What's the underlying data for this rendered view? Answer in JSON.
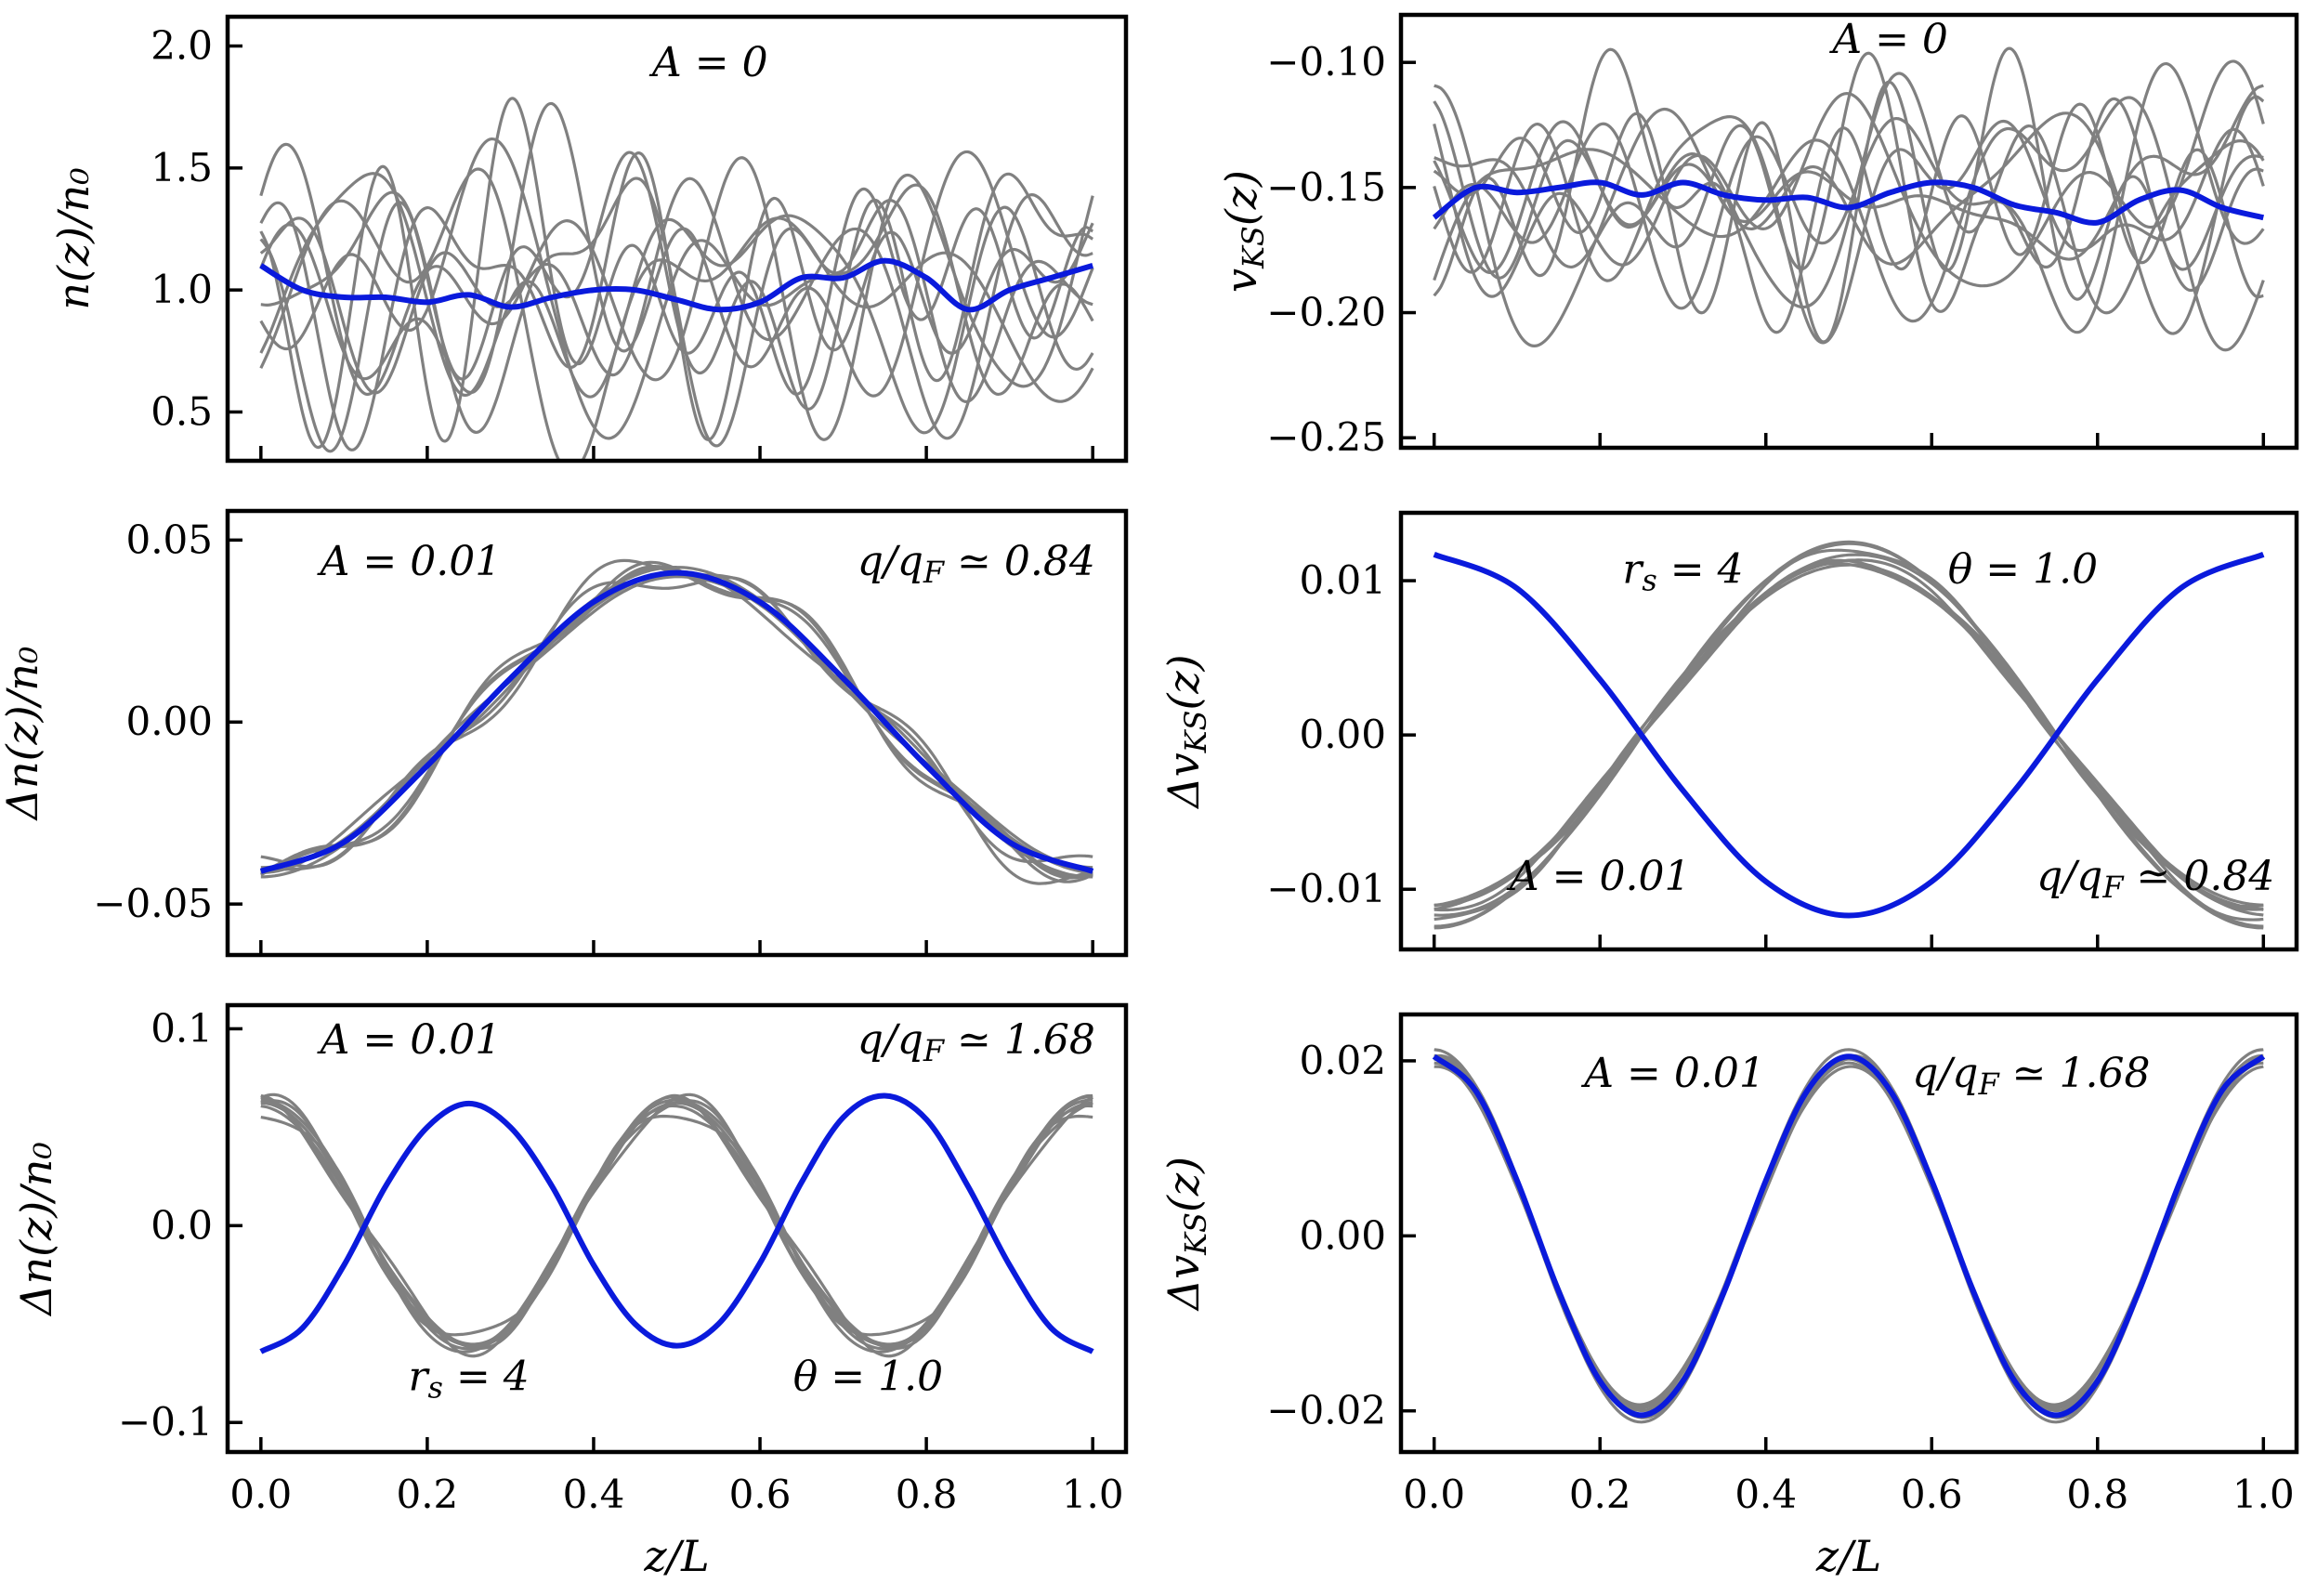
{
  "chart_data": [
    {
      "id": "top-left",
      "type": "line",
      "title": "",
      "xlabel": "",
      "ylabel": "n(z)/n₀",
      "xlim": [
        -0.04,
        1.04
      ],
      "ylim": [
        0.3,
        2.12
      ],
      "xticks": [
        0.0,
        0.2,
        0.4,
        0.6,
        0.8,
        1.0
      ],
      "xtick_labels": [
        "",
        "",
        "",
        "",
        "",
        ""
      ],
      "yticks": [
        0.5,
        1.0,
        1.5,
        2.0
      ],
      "ytick_labels": [
        "0.5",
        "1.0",
        "1.5",
        "2.0"
      ],
      "annotations": [
        {
          "text": "A = 0",
          "x": 0.54,
          "y": 1.93
        }
      ],
      "gray_series_count": 10,
      "gray_curve": {
        "base": 1.0,
        "amp": 0.55,
        "modes": [
          2,
          3,
          4,
          5,
          6,
          7
        ]
      },
      "series": [
        {
          "name": "mean",
          "color": "#0a1adc",
          "x": [
            0.0,
            0.05,
            0.1,
            0.15,
            0.2,
            0.25,
            0.3,
            0.35,
            0.4,
            0.45,
            0.5,
            0.55,
            0.6,
            0.65,
            0.7,
            0.75,
            0.8,
            0.85,
            0.9,
            0.95,
            1.0
          ],
          "y": [
            1.1,
            1.0,
            0.97,
            0.97,
            0.95,
            0.98,
            0.93,
            0.97,
            1.0,
            1.0,
            0.96,
            0.92,
            0.95,
            1.05,
            1.05,
            1.12,
            1.05,
            0.92,
            1.0,
            1.05,
            1.1
          ]
        }
      ]
    },
    {
      "id": "top-right",
      "type": "line",
      "title": "",
      "xlabel": "",
      "ylabel": "v_KS(z)",
      "xlim": [
        -0.04,
        1.04
      ],
      "ylim": [
        -0.254,
        -0.081
      ],
      "xticks": [
        0.0,
        0.2,
        0.4,
        0.6,
        0.8,
        1.0
      ],
      "xtick_labels": [
        "",
        "",
        "",
        "",
        "",
        ""
      ],
      "yticks": [
        -0.25,
        -0.2,
        -0.15,
        -0.1
      ],
      "ytick_labels": [
        "−0.25",
        "−0.20",
        "−0.15",
        "−0.10"
      ],
      "annotations": [
        {
          "text": "A = 0",
          "x": 0.55,
          "y": -0.091
        }
      ],
      "gray_series_count": 10,
      "gray_curve": {
        "base": -0.155,
        "amp": 0.045,
        "modes": [
          2,
          3,
          4,
          5,
          6,
          7
        ]
      },
      "series": [
        {
          "name": "mean",
          "color": "#0a1adc",
          "x": [
            0.0,
            0.05,
            0.1,
            0.15,
            0.2,
            0.25,
            0.3,
            0.35,
            0.4,
            0.45,
            0.5,
            0.55,
            0.6,
            0.65,
            0.7,
            0.75,
            0.8,
            0.85,
            0.9,
            0.95,
            1.0
          ],
          "y": [
            -0.162,
            -0.15,
            -0.152,
            -0.15,
            -0.148,
            -0.153,
            -0.148,
            -0.153,
            -0.155,
            -0.154,
            -0.158,
            -0.152,
            -0.148,
            -0.15,
            -0.157,
            -0.16,
            -0.164,
            -0.155,
            -0.151,
            -0.158,
            -0.162
          ]
        }
      ]
    },
    {
      "id": "middle-left",
      "type": "line",
      "title": "",
      "xlabel": "",
      "ylabel": "Δn(z)/n₀",
      "xlim": [
        -0.04,
        1.04
      ],
      "ylim": [
        -0.064,
        0.058
      ],
      "xticks": [
        0.0,
        0.2,
        0.4,
        0.6,
        0.8,
        1.0
      ],
      "xtick_labels": [
        "",
        "",
        "",
        "",
        "",
        ""
      ],
      "yticks": [
        -0.05,
        0.0,
        0.05
      ],
      "ytick_labels": [
        "−0.05",
        "0.00",
        "0.05"
      ],
      "annotations": [
        {
          "text": "A = 0.01",
          "x": 0.18,
          "y": 0.044
        },
        {
          "text": "q/q_F ≃ 0.84",
          "x": 0.86,
          "y": 0.044
        }
      ],
      "gray_series_count": 8,
      "gray_curve": {
        "base": 0.0,
        "amp": 0.041,
        "cos_k": 1,
        "noise": 0.008
      },
      "series": [
        {
          "name": "mean",
          "color": "#0a1adc",
          "x": [
            0.0,
            0.1,
            0.2,
            0.3,
            0.4,
            0.5,
            0.6,
            0.7,
            0.8,
            0.9,
            1.0
          ],
          "y": [
            -0.041,
            -0.033,
            -0.012,
            0.012,
            0.033,
            0.041,
            0.033,
            0.012,
            -0.012,
            -0.033,
            -0.041
          ]
        }
      ]
    },
    {
      "id": "middle-right",
      "type": "line",
      "title": "",
      "xlabel": "",
      "ylabel": "Δv_KS(z)",
      "xlim": [
        -0.04,
        1.04
      ],
      "ylim": [
        -0.0139,
        0.0144
      ],
      "xticks": [
        0.0,
        0.2,
        0.4,
        0.6,
        0.8,
        1.0
      ],
      "xtick_labels": [
        "",
        "",
        "",
        "",
        "",
        ""
      ],
      "yticks": [
        -0.01,
        0.0,
        0.01
      ],
      "ytick_labels": [
        "−0.01",
        "0.00",
        "0.01"
      ],
      "annotations": [
        {
          "text": "r_s = 4",
          "x": 0.3,
          "y": 0.0107
        },
        {
          "text": "θ = 1.0",
          "x": 0.71,
          "y": 0.0107
        },
        {
          "text": "A = 0.01",
          "x": 0.2,
          "y": -0.0092
        },
        {
          "text": "q/q_F ≃ 0.84",
          "x": 0.87,
          "y": -0.0092
        }
      ],
      "gray_series_count": 8,
      "gray_curve": {
        "base": 0.0,
        "amp": 0.0117,
        "cos_k": 1,
        "noise": 0.0007
      },
      "series": [
        {
          "name": "mean",
          "color": "#0a1adc",
          "x": [
            0.0,
            0.1,
            0.2,
            0.3,
            0.4,
            0.5,
            0.6,
            0.7,
            0.8,
            0.9,
            1.0
          ],
          "y": [
            0.0117,
            0.0095,
            0.0036,
            -0.0036,
            -0.0095,
            -0.0117,
            -0.0095,
            -0.0036,
            0.0036,
            0.0095,
            0.0117
          ]
        }
      ]
    },
    {
      "id": "bottom-left",
      "type": "line",
      "title": "",
      "xlabel": "z/L",
      "ylabel": "Δn(z)/n₀",
      "xlim": [
        -0.04,
        1.04
      ],
      "ylim": [
        -0.115,
        0.112
      ],
      "xticks": [
        0.0,
        0.2,
        0.4,
        0.6,
        0.8,
        1.0
      ],
      "xtick_labels": [
        "0.0",
        "0.2",
        "0.4",
        "0.6",
        "0.8",
        "1.0"
      ],
      "yticks": [
        -0.1,
        0.0,
        0.1
      ],
      "ytick_labels": [
        "−0.1",
        "0.0",
        "0.1"
      ],
      "annotations": [
        {
          "text": "A = 0.01",
          "x": 0.18,
          "y": 0.094
        },
        {
          "text": "q/q_F ≃ 1.68",
          "x": 0.86,
          "y": 0.094
        },
        {
          "text": "r_s = 4",
          "x": 0.25,
          "y": -0.077
        },
        {
          "text": "θ = 1.0",
          "x": 0.73,
          "y": -0.077
        }
      ],
      "gray_series_count": 8,
      "gray_curve": {
        "base": 0.0,
        "amp": 0.063,
        "cos_k": 2,
        "noise": 0.01
      },
      "series": [
        {
          "name": "mean",
          "color": "#0a1adc",
          "x": [
            0.0,
            0.05,
            0.1,
            0.15,
            0.2,
            0.25,
            0.3,
            0.35,
            0.4,
            0.45,
            0.5,
            0.55,
            0.6,
            0.65,
            0.7,
            0.75,
            0.8,
            0.85,
            0.9,
            0.95,
            1.0
          ],
          "y": [
            -0.064,
            -0.052,
            -0.02,
            0.02,
            0.05,
            0.062,
            0.05,
            0.02,
            -0.02,
            -0.05,
            -0.061,
            -0.05,
            -0.019,
            0.022,
            0.055,
            0.066,
            0.054,
            0.02,
            -0.02,
            -0.052,
            -0.064
          ]
        }
      ]
    },
    {
      "id": "bottom-right",
      "type": "line",
      "title": "",
      "xlabel": "z/L",
      "ylabel": "Δv_KS(z)",
      "xlim": [
        -0.04,
        1.04
      ],
      "ylim": [
        -0.0247,
        0.0253
      ],
      "xticks": [
        0.0,
        0.2,
        0.4,
        0.6,
        0.8,
        1.0
      ],
      "xtick_labels": [
        "0.0",
        "0.2",
        "0.4",
        "0.6",
        "0.8",
        "1.0"
      ],
      "yticks": [
        -0.02,
        0.0,
        0.02
      ],
      "ytick_labels": [
        "−0.02",
        "0.00",
        "0.02"
      ],
      "annotations": [
        {
          "text": "A = 0.01",
          "x": 0.29,
          "y": 0.0185
        },
        {
          "text": "q/q_F ≃ 1.68",
          "x": 0.72,
          "y": 0.0185
        }
      ],
      "gray_series_count": 8,
      "gray_curve": {
        "base": 0.0,
        "amp": 0.0205,
        "cos_k": 2,
        "noise": 0.0012
      },
      "series": [
        {
          "name": "mean",
          "color": "#0a1adc",
          "x": [
            0.0,
            0.05,
            0.1,
            0.15,
            0.2,
            0.25,
            0.3,
            0.35,
            0.4,
            0.45,
            0.5,
            0.55,
            0.6,
            0.65,
            0.7,
            0.75,
            0.8,
            0.85,
            0.9,
            0.95,
            1.0
          ],
          "y": [
            0.0205,
            0.0166,
            0.0063,
            -0.0063,
            -0.0166,
            -0.0205,
            -0.0166,
            -0.0063,
            0.0063,
            0.0166,
            0.0205,
            0.0166,
            0.0063,
            -0.0063,
            -0.0166,
            -0.0205,
            -0.0166,
            -0.0063,
            0.0063,
            0.0166,
            0.0205
          ]
        }
      ]
    }
  ]
}
